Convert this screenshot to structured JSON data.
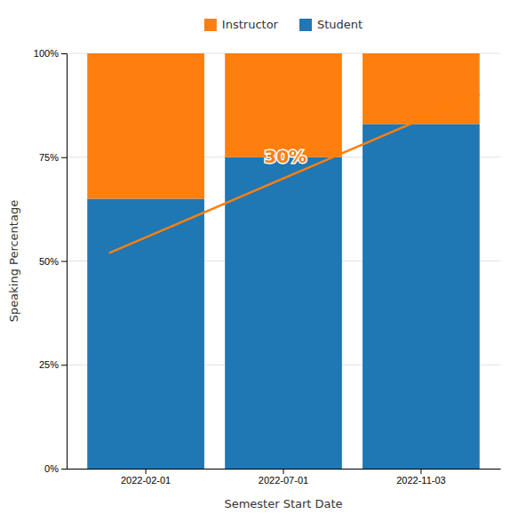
{
  "chart_data": {
    "type": "bar",
    "stacked": true,
    "categories": [
      "2022-02-01",
      "2022-07-01",
      "2022-11-03"
    ],
    "series": [
      {
        "name": "Student",
        "values": [
          65,
          75,
          83
        ]
      },
      {
        "name": "Instructor",
        "values": [
          35,
          25,
          17
        ]
      }
    ],
    "xlabel": "Semester Start Date",
    "ylabel": "Speaking Percentage",
    "ylim": [
      0,
      100
    ],
    "yticks": [
      {
        "value": 0,
        "label": "0%"
      },
      {
        "value": 25,
        "label": "25%"
      },
      {
        "value": 50,
        "label": "50%"
      },
      {
        "value": 75,
        "label": "75%"
      },
      {
        "value": 100,
        "label": "100%"
      }
    ],
    "grid": true,
    "legend": "top",
    "annotations": [
      {
        "text": "30%"
      }
    ]
  }
}
